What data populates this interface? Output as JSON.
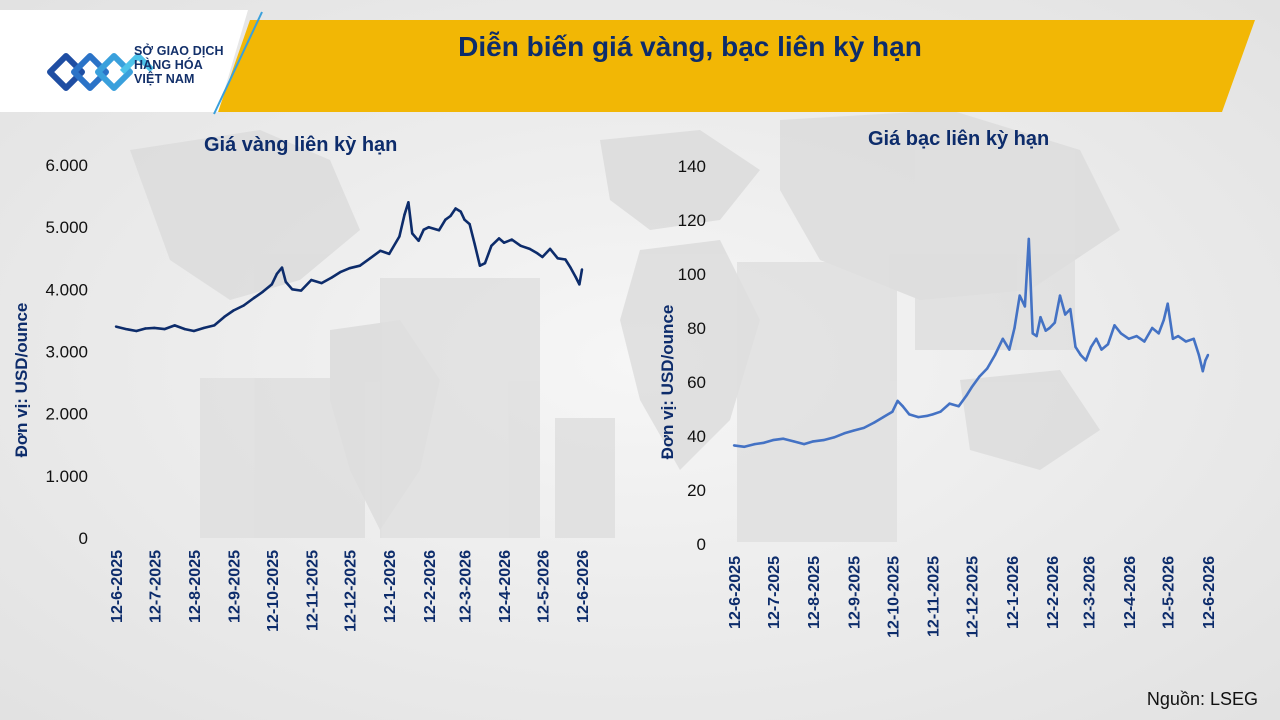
{
  "header": {
    "title": "Diễn biến giá vàng, bạc liên kỳ hạn",
    "logo_lines": [
      "SỞ GIAO DỊCH",
      "HÀNG HÓA",
      "VIỆT NAM"
    ]
  },
  "footer": {
    "source": "Nguồn: LSEG"
  },
  "colors": {
    "banner": "#f2b705",
    "gold_line": "#0d2c6b",
    "silver_line": "#4472c4",
    "title_text": "#0d2c6b"
  },
  "chart_data": [
    {
      "type": "line",
      "title": "Giá vàng liên kỳ hạn",
      "ylabel": "Đơn vị: USD/ounce",
      "xlabel": "",
      "ylim": [
        0,
        6000
      ],
      "yticks": [
        0,
        1000,
        2000,
        3000,
        4000,
        5000,
        6000
      ],
      "ytick_labels": [
        "0",
        "1.000",
        "2.000",
        "3.000",
        "4.000",
        "5.000",
        "6.000"
      ],
      "xlim": [
        "2025-06-12",
        "2026-06-12"
      ],
      "xticks": [
        "2025-06-12",
        "2025-07-12",
        "2025-08-12",
        "2025-09-12",
        "2025-10-12",
        "2025-11-12",
        "2025-12-12",
        "2026-01-12",
        "2026-02-12",
        "2026-03-12",
        "2026-04-12",
        "2026-05-12",
        "2026-06-12"
      ],
      "xtick_labels": [
        "12-6-2025",
        "12-7-2025",
        "12-8-2025",
        "12-9-2025",
        "12-10-2025",
        "12-11-2025",
        "12-12-2025",
        "12-1-2026",
        "12-2-2026",
        "12-3-2026",
        "12-4-2026",
        "12-5-2026",
        "12-6-2026"
      ],
      "grid": false,
      "series": [
        {
          "color": "#0d2c6b",
          "x": [
            "2025-06-12",
            "2025-06-20",
            "2025-06-28",
            "2025-07-05",
            "2025-07-12",
            "2025-07-20",
            "2025-07-28",
            "2025-08-05",
            "2025-08-12",
            "2025-08-20",
            "2025-08-28",
            "2025-09-05",
            "2025-09-12",
            "2025-09-20",
            "2025-09-28",
            "2025-10-05",
            "2025-10-12",
            "2025-10-16",
            "2025-10-20",
            "2025-10-23",
            "2025-10-28",
            "2025-11-04",
            "2025-11-12",
            "2025-11-20",
            "2025-11-28",
            "2025-12-05",
            "2025-12-12",
            "2025-12-20",
            "2025-12-28",
            "2026-01-05",
            "2026-01-12",
            "2026-01-20",
            "2026-01-24",
            "2026-01-27",
            "2026-01-30",
            "2026-02-04",
            "2026-02-08",
            "2026-02-12",
            "2026-02-20",
            "2026-02-25",
            "2026-03-01",
            "2026-03-05",
            "2026-03-09",
            "2026-03-12",
            "2026-03-16",
            "2026-03-20",
            "2026-03-24",
            "2026-03-28",
            "2026-04-02",
            "2026-04-08",
            "2026-04-12",
            "2026-04-18",
            "2026-04-25",
            "2026-05-02",
            "2026-05-08",
            "2026-05-12",
            "2026-05-18",
            "2026-05-24",
            "2026-05-30",
            "2026-06-03",
            "2026-06-07",
            "2026-06-10",
            "2026-06-12"
          ],
          "values": [
            3400,
            3360,
            3330,
            3370,
            3380,
            3360,
            3420,
            3360,
            3330,
            3380,
            3420,
            3560,
            3660,
            3740,
            3860,
            3960,
            4080,
            4250,
            4350,
            4120,
            4000,
            3980,
            4150,
            4100,
            4190,
            4280,
            4340,
            4380,
            4500,
            4620,
            4570,
            4850,
            5200,
            5400,
            4900,
            4780,
            4960,
            5000,
            4950,
            5120,
            5180,
            5300,
            5250,
            5120,
            5050,
            4720,
            4380,
            4420,
            4700,
            4820,
            4750,
            4800,
            4700,
            4650,
            4580,
            4520,
            4650,
            4500,
            4480,
            4350,
            4200,
            4080,
            4320
          ]
        }
      ]
    },
    {
      "type": "line",
      "title": "Giá bạc liên kỳ hạn",
      "ylabel": "Đơn vị: USD/ounce",
      "xlabel": "",
      "ylim": [
        0,
        140
      ],
      "yticks": [
        0,
        20,
        40,
        60,
        80,
        100,
        120,
        140
      ],
      "ytick_labels": [
        "0",
        "20",
        "40",
        "60",
        "80",
        "100",
        "120",
        "140"
      ],
      "xlim": [
        "2025-06-12",
        "2026-06-12"
      ],
      "xticks": [
        "2025-06-12",
        "2025-07-12",
        "2025-08-12",
        "2025-09-12",
        "2025-10-12",
        "2025-11-12",
        "2025-12-12",
        "2026-01-12",
        "2026-02-12",
        "2026-03-12",
        "2026-04-12",
        "2026-05-12",
        "2026-06-12"
      ],
      "xtick_labels": [
        "12-6-2025",
        "12-7-2025",
        "12-8-2025",
        "12-9-2025",
        "12-10-2025",
        "12-11-2025",
        "12-12-2025",
        "12-1-2026",
        "12-2-2026",
        "12-3-2026",
        "12-4-2026",
        "12-5-2026",
        "12-6-2026"
      ],
      "grid": false,
      "series": [
        {
          "color": "#4472c4",
          "x": [
            "2025-06-12",
            "2025-06-20",
            "2025-06-28",
            "2025-07-05",
            "2025-07-12",
            "2025-07-20",
            "2025-07-28",
            "2025-08-05",
            "2025-08-12",
            "2025-08-20",
            "2025-08-28",
            "2025-09-05",
            "2025-09-12",
            "2025-09-20",
            "2025-09-28",
            "2025-10-05",
            "2025-10-12",
            "2025-10-16",
            "2025-10-20",
            "2025-10-25",
            "2025-11-01",
            "2025-11-08",
            "2025-11-12",
            "2025-11-18",
            "2025-11-25",
            "2025-12-02",
            "2025-12-08",
            "2025-12-12",
            "2025-12-18",
            "2025-12-24",
            "2025-12-30",
            "2026-01-05",
            "2026-01-10",
            "2026-01-14",
            "2026-01-18",
            "2026-01-22",
            "2026-01-25",
            "2026-01-28",
            "2026-01-31",
            "2026-02-03",
            "2026-02-07",
            "2026-02-10",
            "2026-02-14",
            "2026-02-18",
            "2026-02-22",
            "2026-02-26",
            "2026-03-02",
            "2026-03-06",
            "2026-03-10",
            "2026-03-14",
            "2026-03-18",
            "2026-03-22",
            "2026-03-27",
            "2026-04-01",
            "2026-04-06",
            "2026-04-12",
            "2026-04-18",
            "2026-04-24",
            "2026-04-30",
            "2026-05-05",
            "2026-05-09",
            "2026-05-12",
            "2026-05-16",
            "2026-05-20",
            "2026-05-26",
            "2026-06-01",
            "2026-06-05",
            "2026-06-08",
            "2026-06-10",
            "2026-06-12"
          ],
          "values": [
            36.5,
            36,
            37,
            37.5,
            38.5,
            39,
            38,
            37,
            38,
            38.5,
            39.5,
            41,
            42,
            43,
            45,
            47,
            49,
            53,
            51,
            48,
            47,
            47.5,
            48,
            49,
            52,
            51,
            55,
            58,
            62,
            65,
            70,
            76,
            72,
            80,
            92,
            88,
            113,
            78,
            77,
            84,
            79,
            80,
            82,
            92,
            85,
            87,
            73,
            70,
            68,
            73,
            76,
            72,
            74,
            81,
            78,
            76,
            77,
            75,
            80,
            78,
            83,
            89,
            76,
            77,
            75,
            76,
            70,
            64,
            68,
            70
          ]
        }
      ]
    }
  ]
}
